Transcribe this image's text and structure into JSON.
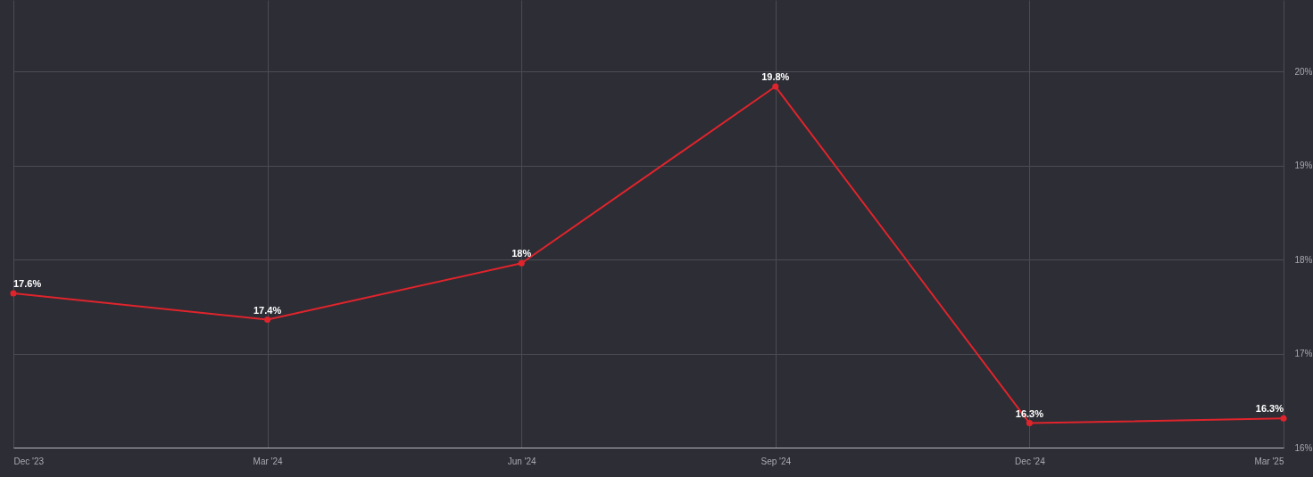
{
  "chart_data": {
    "type": "line",
    "categories": [
      "Dec '23",
      "Mar '24",
      "Jun '24",
      "Sep '24",
      "Dec '24",
      "Mar '25"
    ],
    "values": [
      17.64,
      17.36,
      17.96,
      19.84,
      16.26,
      16.31
    ],
    "value_labels": [
      "17.6%",
      "17.4%",
      "18%",
      "19.8%",
      "16.3%",
      "16.3%"
    ],
    "color": "#e0242c",
    "ylim": [
      16,
      20.76
    ],
    "yticks": [
      {
        "value": 16,
        "label": "16%"
      },
      {
        "value": 17,
        "label": "17%"
      },
      {
        "value": 18,
        "label": "18%"
      },
      {
        "value": 19,
        "label": "19%"
      },
      {
        "value": 20,
        "label": "20%"
      }
    ],
    "grid": true,
    "marker": "circle",
    "line_style": "solid"
  }
}
